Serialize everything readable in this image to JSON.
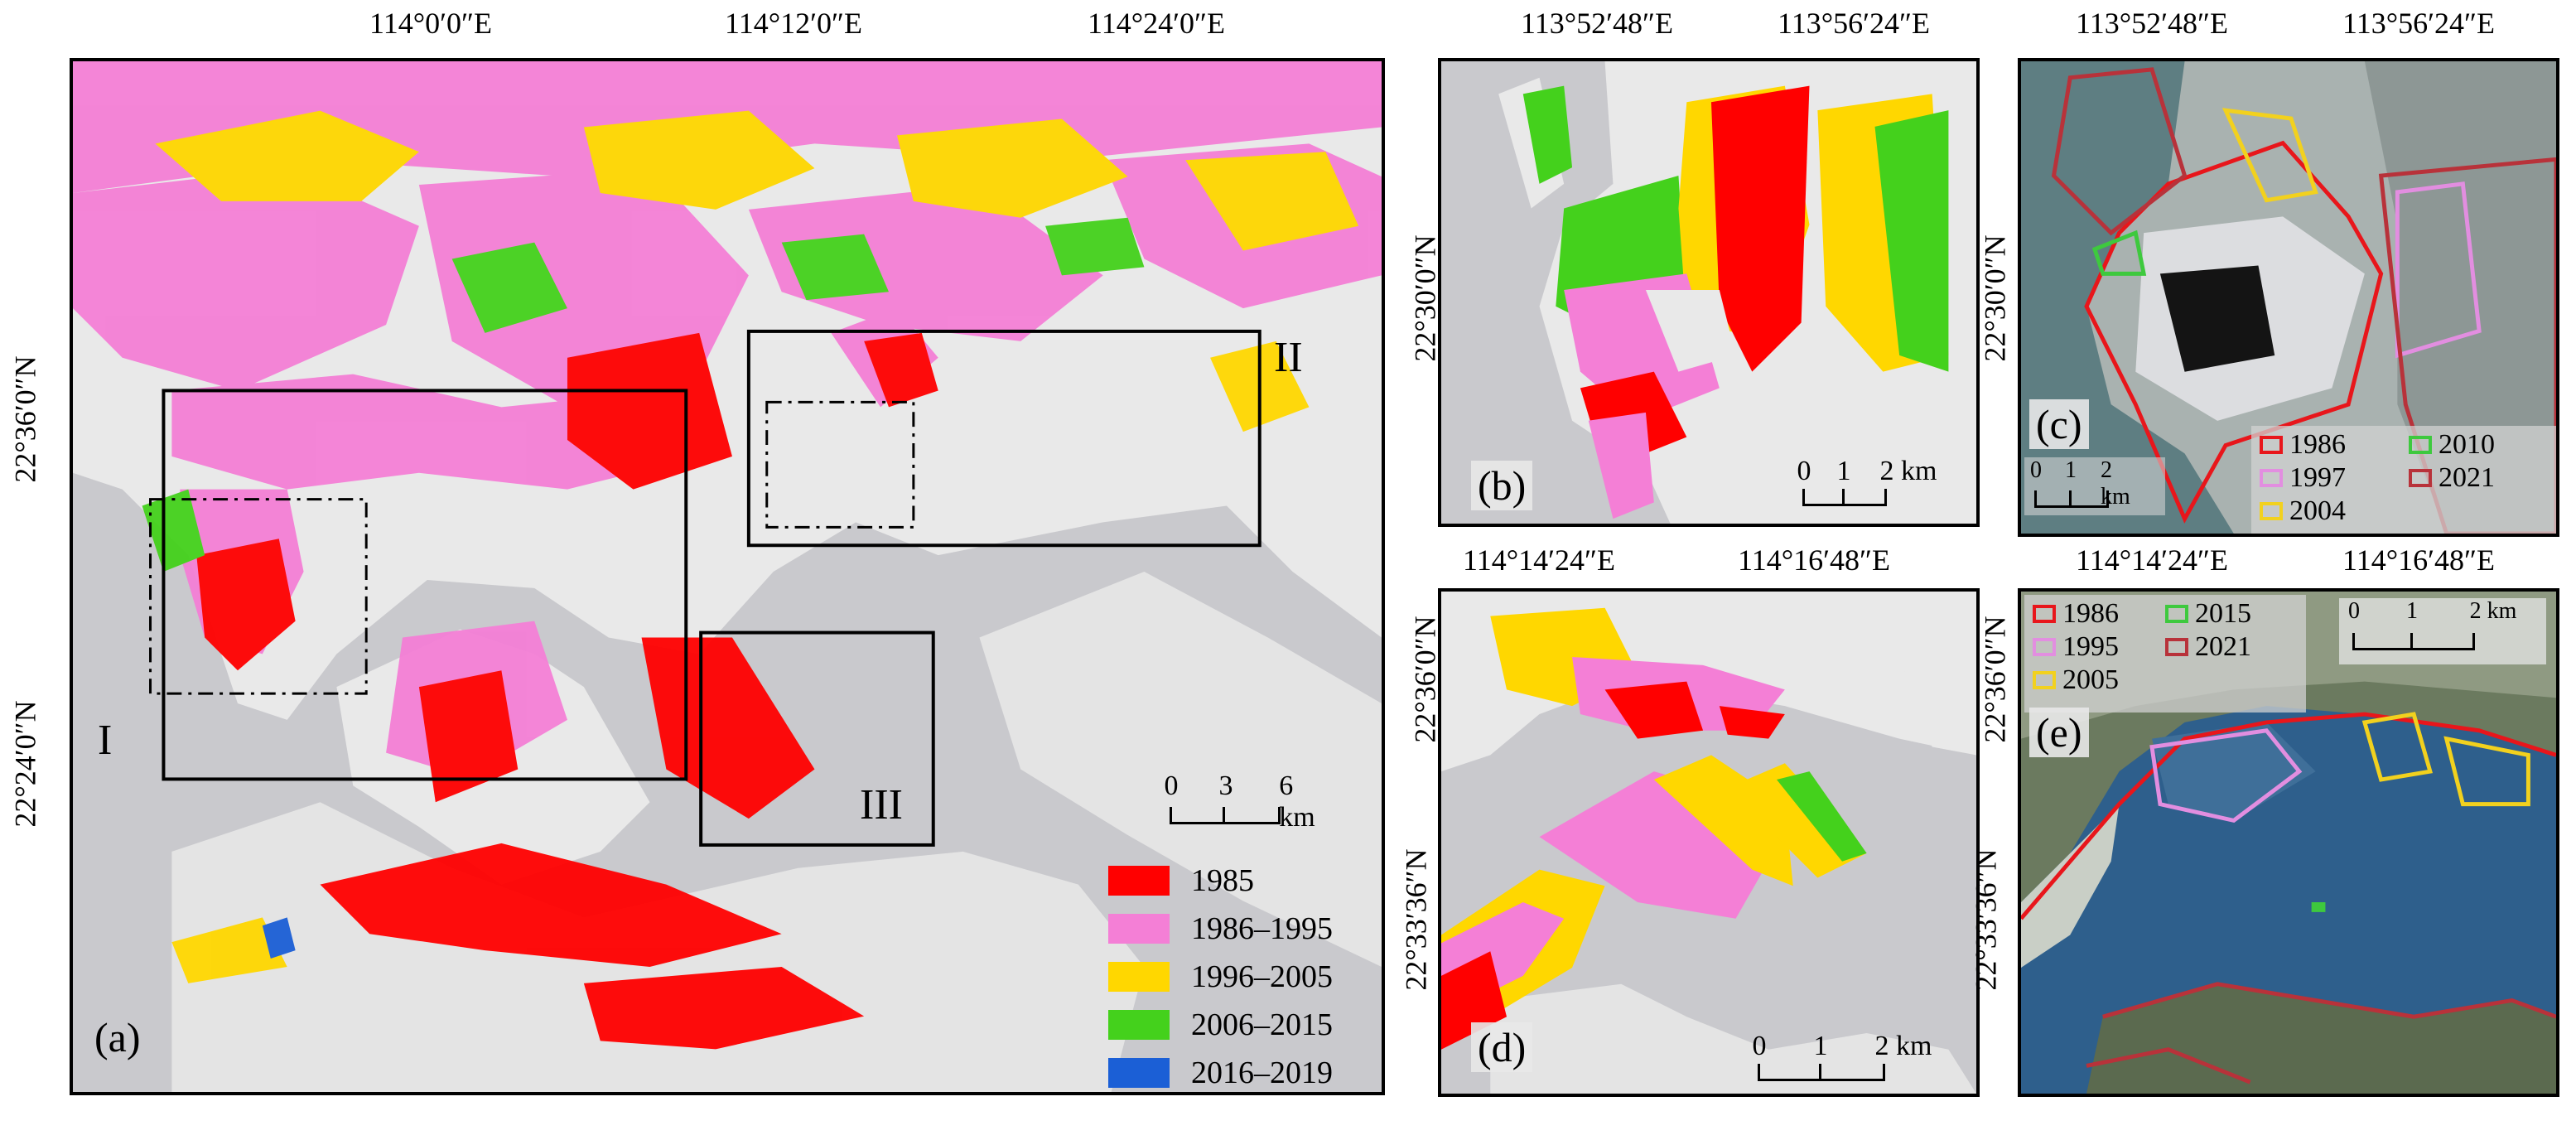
{
  "panels": {
    "a": {
      "label": "(a)",
      "top_ticks": [
        "114°0′0″E",
        "114°12′0″E",
        "114°24′0″E"
      ],
      "left_ticks": [
        "22°36′0″N",
        "22°24′0″N"
      ],
      "roi": [
        "I",
        "II",
        "III"
      ],
      "scale": {
        "labels": [
          "0",
          "3",
          "6 km"
        ]
      },
      "legend": [
        {
          "label": "1985",
          "color": "#ff0000"
        },
        {
          "label": "1986–1995",
          "color": "#f47fd6"
        },
        {
          "label": "1996–2005",
          "color": "#ffd700"
        },
        {
          "label": "2006–2015",
          "color": "#44d11c"
        },
        {
          "label": "2016–2019",
          "color": "#1b5fd6"
        }
      ]
    },
    "b": {
      "label": "(b)",
      "top_ticks": [
        "113°52′48″E",
        "113°56′24″E"
      ],
      "left_ticks": [
        "22°30′0″N"
      ],
      "scale": {
        "labels": [
          "0",
          "1",
          "2 km"
        ]
      }
    },
    "c": {
      "label": "(c)",
      "top_ticks": [
        "113°52′48″E",
        "113°56′24″E"
      ],
      "left_ticks": [
        "22°30′0″N"
      ],
      "scale": {
        "labels": [
          "0",
          "1",
          "2 km"
        ]
      },
      "legend": [
        {
          "label": "1986",
          "color": "#e8161b"
        },
        {
          "label": "2010",
          "color": "#3ec93e"
        },
        {
          "label": "1997",
          "color": "#e28ee0"
        },
        {
          "label": "2021",
          "color": "#b8323a"
        },
        {
          "label": "2004",
          "color": "#f2d11e"
        }
      ]
    },
    "d": {
      "label": "(d)",
      "top_ticks": [
        "114°14′24″E",
        "114°16′48″E"
      ],
      "left_ticks": [
        "22°36′0″N",
        "22°33′36″N"
      ],
      "scale": {
        "labels": [
          "0",
          "1",
          "2 km"
        ]
      }
    },
    "e": {
      "label": "(e)",
      "top_ticks": [
        "114°14′24″E",
        "114°16′48″E"
      ],
      "left_ticks": [
        "22°36′0″N",
        "22°33′36″N"
      ],
      "scale": {
        "labels": [
          "0",
          "1",
          "2 km"
        ]
      },
      "legend": [
        {
          "label": "1986",
          "color": "#e8161b"
        },
        {
          "label": "2015",
          "color": "#3ec93e"
        },
        {
          "label": "1995",
          "color": "#e28ee0"
        },
        {
          "label": "2021",
          "color": "#b8323a"
        },
        {
          "label": "2005",
          "color": "#f2d11e"
        }
      ]
    }
  },
  "colors": {
    "sea": "#c9c9cd",
    "land": "#e9e9e9",
    "frame": "#000000"
  }
}
